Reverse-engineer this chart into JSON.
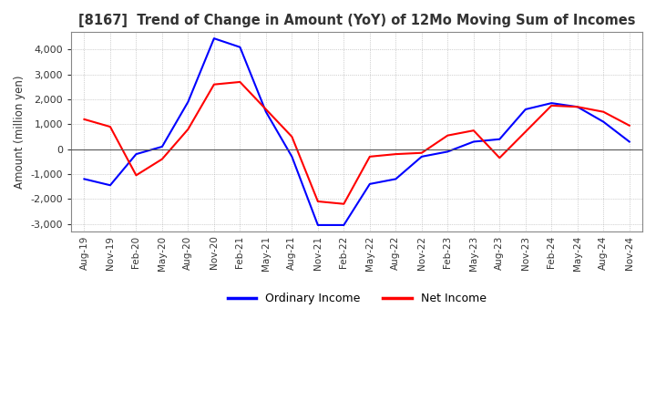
{
  "title": "[8167]  Trend of Change in Amount (YoY) of 12Mo Moving Sum of Incomes",
  "ylabel": "Amount (million yen)",
  "ylim": [
    -3300,
    4700
  ],
  "yticks": [
    -3000,
    -2000,
    -1000,
    0,
    1000,
    2000,
    3000,
    4000
  ],
  "background_color": "#ffffff",
  "grid_color": "#aaaaaa",
  "ordinary_income_color": "#0000ff",
  "net_income_color": "#ff0000",
  "x_labels": [
    "Aug-19",
    "Nov-19",
    "Feb-20",
    "May-20",
    "Aug-20",
    "Nov-20",
    "Feb-21",
    "May-21",
    "Aug-21",
    "Nov-21",
    "Feb-22",
    "May-22",
    "Aug-22",
    "Nov-22",
    "Feb-23",
    "May-23",
    "Aug-23",
    "Nov-23",
    "Feb-24",
    "May-24",
    "Aug-24",
    "Nov-24"
  ],
  "ordinary_income": [
    -1200,
    -1450,
    -200,
    100,
    1900,
    4450,
    4100,
    1500,
    -300,
    -3050,
    -3050,
    -1400,
    -1200,
    -300,
    -100,
    300,
    400,
    1600,
    1850,
    1700,
    1100,
    300
  ],
  "net_income": [
    1200,
    900,
    -1050,
    -400,
    800,
    2600,
    2700,
    1600,
    500,
    -2100,
    -2200,
    -300,
    -200,
    -150,
    550,
    750,
    -350,
    700,
    1750,
    1700,
    1500,
    950
  ]
}
